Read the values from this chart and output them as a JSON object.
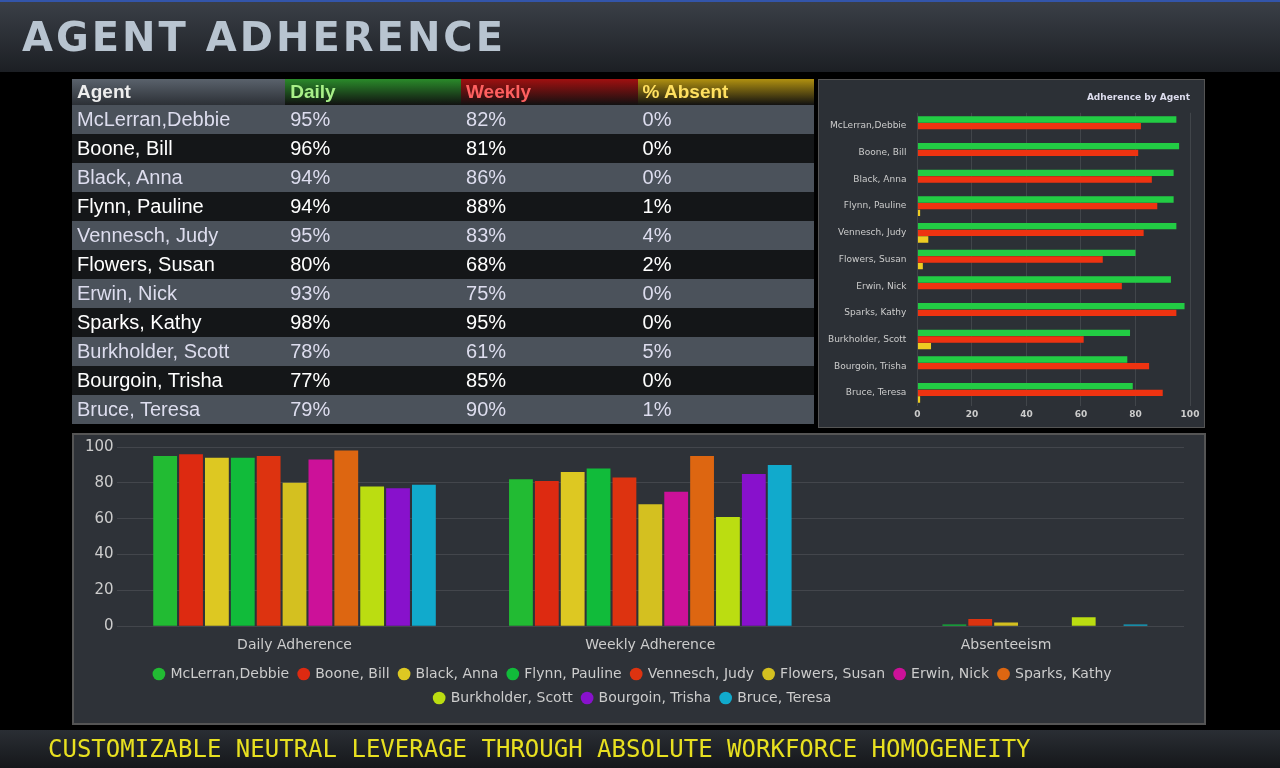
{
  "chart_data": [
    {
      "type": "other",
      "title": "AGENT ADHERENCE",
      "annotations": [
        "CUSTOMIZABLE NEUTRAL LEVERAGE THROUGH ABSOLUTE WORKFORCE HOMOGENEITY"
      ]
    },
    {
      "type": "other",
      "ylabel": "Agent",
      "categories": [
        "McLerran,Debbie",
        "Boone, Bill",
        "Black, Anna",
        "Flynn, Pauline",
        "Vennesch, Judy",
        "Flowers, Susan",
        "Erwin, Nick",
        "Sparks, Kathy",
        "Burkholder, Scott",
        "Bourgoin, Trisha",
        "Bruce, Teresa"
      ],
      "series": [
        {
          "name": "Daily",
          "colors": [
            "#4b525b",
            "#141618",
            "#4b525b",
            "#141618",
            "#4b525b",
            "#141618",
            "#4b525b",
            "#141618",
            "#4b525b",
            "#141618",
            "#4b525b"
          ],
          "values": [
            95,
            96,
            94,
            94,
            95,
            80,
            93,
            98,
            78,
            77,
            79
          ],
          "value_labels": [
            "95%",
            "96%",
            "94%",
            "94%",
            "95%",
            "80%",
            "93%",
            "98%",
            "78%",
            "77%",
            "79%"
          ]
        },
        {
          "name": "Weekly",
          "colors": [
            "#4b525b",
            "#141618",
            "#4b525b",
            "#141618",
            "#4b525b",
            "#141618",
            "#4b525b",
            "#141618",
            "#4b525b",
            "#141618",
            "#4b525b"
          ],
          "values": [
            82,
            81,
            86,
            88,
            83,
            68,
            75,
            95,
            61,
            85,
            90
          ],
          "value_labels": [
            "82%",
            "81%",
            "86%",
            "88%",
            "83%",
            "68%",
            "75%",
            "95%",
            "61%",
            "85%",
            "90%"
          ]
        },
        {
          "name": "% Absent",
          "colors": [
            "#4b525b",
            "#141618",
            "#4b525b",
            "#141618",
            "#4b525b",
            "#141618",
            "#4b525b",
            "#141618",
            "#4b525b",
            "#141618",
            "#4b525b"
          ],
          "values": [
            0,
            0,
            0,
            1,
            4,
            2,
            0,
            0,
            5,
            0,
            1
          ],
          "value_labels": [
            "0%",
            "0%",
            "0%",
            "1%",
            "4%",
            "2%",
            "0%",
            "0%",
            "5%",
            "0%",
            "1%"
          ]
        }
      ]
    },
    {
      "type": "bar",
      "orientation": "horizontal",
      "title": "Adherence by Agent",
      "categories": [
        "McLerran,Debbie",
        "Boone, Bill",
        "Black, Anna",
        "Flynn, Pauline",
        "Vennesch, Judy",
        "Flowers, Susan",
        "Erwin, Nick",
        "Sparks, Kathy",
        "Burkholder, Scott",
        "Bourgoin, Trisha",
        "Bruce, Teresa"
      ],
      "xlim": [
        0,
        100
      ],
      "xticks": [
        0,
        20,
        40,
        60,
        80,
        100
      ],
      "grid": "x",
      "series": [
        {
          "color": "#22cc44",
          "values": [
            95,
            96,
            94,
            94,
            95,
            80,
            93,
            98,
            78,
            77,
            79
          ]
        },
        {
          "color": "#ee3311",
          "values": [
            82,
            81,
            86,
            88,
            83,
            68,
            75,
            95,
            61,
            85,
            90
          ]
        },
        {
          "color": "#eecc22",
          "values": [
            0,
            0,
            0,
            1,
            4,
            2,
            0,
            0,
            5,
            0,
            1
          ]
        }
      ]
    },
    {
      "type": "bar",
      "categories": [
        "Daily Adherence",
        "Weekly Adherence",
        "Absenteeism"
      ],
      "ylim": [
        0,
        100
      ],
      "yticks": [
        0,
        20,
        40,
        60,
        80,
        100
      ],
      "grid": "y",
      "legend": "bottom",
      "series": [
        {
          "name": "McLerran,Debbie",
          "color": "#22bb33",
          "values": [
            95,
            82,
            0
          ]
        },
        {
          "name": "Boone, Bill",
          "color": "#dd2a11",
          "values": [
            96,
            81,
            0
          ]
        },
        {
          "name": "Black, Anna",
          "color": "#ddc822",
          "values": [
            94,
            86,
            0
          ]
        },
        {
          "name": "Flynn, Pauline",
          "color": "#11bb3a",
          "values": [
            94,
            88,
            1
          ]
        },
        {
          "name": "Vennesch, Judy",
          "color": "#dd3310",
          "values": [
            95,
            83,
            4
          ]
        },
        {
          "name": "Flowers, Susan",
          "color": "#d4c020",
          "values": [
            80,
            68,
            2
          ]
        },
        {
          "name": "Erwin, Nick",
          "color": "#cc1199",
          "values": [
            93,
            75,
            0
          ]
        },
        {
          "name": "Sparks, Kathy",
          "color": "#dd6611",
          "values": [
            98,
            95,
            0
          ]
        },
        {
          "name": "Burkholder, Scott",
          "color": "#bbdd11",
          "values": [
            78,
            61,
            5
          ]
        },
        {
          "name": "Bourgoin, Trisha",
          "color": "#8811cc",
          "values": [
            77,
            85,
            0
          ]
        },
        {
          "name": "Bruce, Teresa",
          "color": "#11aacc",
          "values": [
            79,
            90,
            1
          ]
        }
      ]
    }
  ]
}
